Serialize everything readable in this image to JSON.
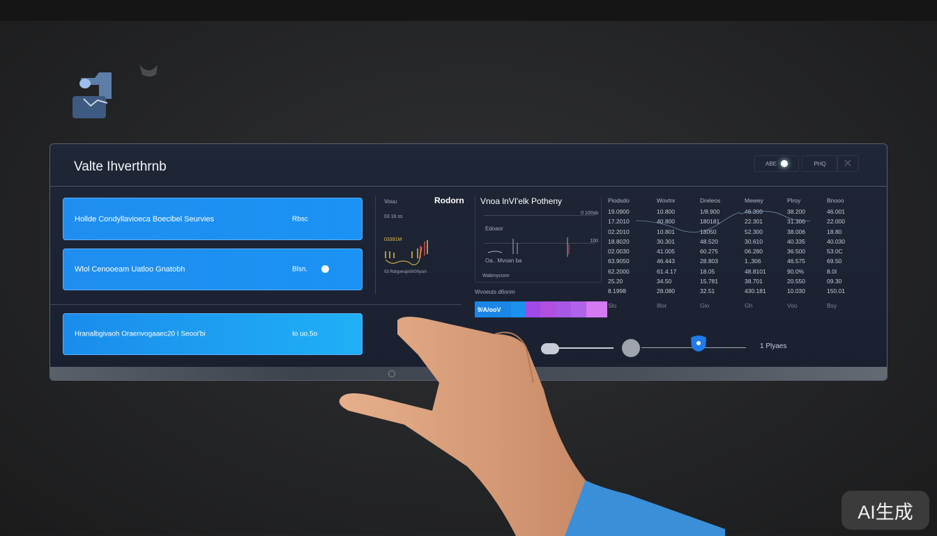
{
  "window": {
    "title": "Valte Ihverthrnb"
  },
  "header_controls": [
    {
      "label": "ABE"
    },
    {
      "label": "PHQ"
    },
    {
      "label": "close"
    }
  ],
  "cards": [
    {
      "label": "Hollde Condyllavioeca Boecibel Seurvies",
      "value": "Rbsc"
    },
    {
      "label": "Wlol Cenooeam Uatloo Gnatobh",
      "value": "Blsn."
    },
    {
      "label": "Hranalbgivaoh Oraenvogaaec20 I Seooi'bi",
      "value": "Io uo.5o"
    }
  ],
  "mini_panel": {
    "title": "Vouu",
    "heading": "Rodorn",
    "sub": "03 16 ss",
    "series_label": "03391M",
    "footer": "03 Rdrgwvajn0000ysm"
  },
  "chart_panel": {
    "title": "Vnoa lnVI'elk Potheny",
    "top_label": "0 100sb",
    "mid_label": "100",
    "legend_a": "Edoaor",
    "legend_b": "Oa.. Mvoan ba",
    "foot": "Wabmyconn",
    "caption": "Wvoeuts d6onm"
  },
  "table": {
    "headers": [
      "Piodsdo",
      "Wovtnr",
      "Dreleos",
      "Mewey",
      "Plroy",
      "Bnooo"
    ],
    "rows": [
      [
        "19.0900",
        "10.800",
        "1/8.900",
        "46.300",
        "38.200",
        "46.001"
      ],
      [
        "17.2010",
        "40.800",
        "180181",
        "22.301",
        "31.306",
        "22.000"
      ],
      [
        "02.2010",
        "10.801",
        "18050",
        "52.300",
        "38.006",
        "18.80"
      ],
      [
        "18.8020",
        "30.301",
        "48.520",
        "30.610",
        "40.335",
        "40.030"
      ],
      [
        "02.0030",
        "41.005",
        "60.275",
        "06.280",
        "36.500",
        "53.0C"
      ],
      [
        "63.9050",
        "46.443",
        "28.803",
        "1.,306",
        "46.575",
        "69.50"
      ],
      [
        "62.2000",
        "61.4.17",
        "18.05",
        "48.8101",
        "90.0%",
        "8.0I"
      ],
      [
        "25.20",
        "34.50",
        "15.781",
        "38.701",
        "20.550",
        "09.30"
      ],
      [
        "8.1998",
        "28.080",
        "32.51",
        "430.181",
        "10.030",
        "150.01"
      ]
    ],
    "footer": [
      "Slo",
      "8lor",
      "Gio",
      "Gh",
      "Voo",
      "Bsy"
    ]
  },
  "progress": {
    "label": "9/A/ooV",
    "value": 100,
    "colors": [
      "#1a86e8",
      "#1b92f0",
      "#a04ae8",
      "#b050e0",
      "#a857e6",
      "#b062ea",
      "#d57af0"
    ]
  },
  "slider": {
    "label": "1 Plyaes",
    "value": 0.62
  },
  "watermark": "AI生成",
  "colors": {
    "card": "#1f8ef0",
    "panel": "#1d2434",
    "background": "#242527",
    "accent": "#1f7ce8"
  }
}
